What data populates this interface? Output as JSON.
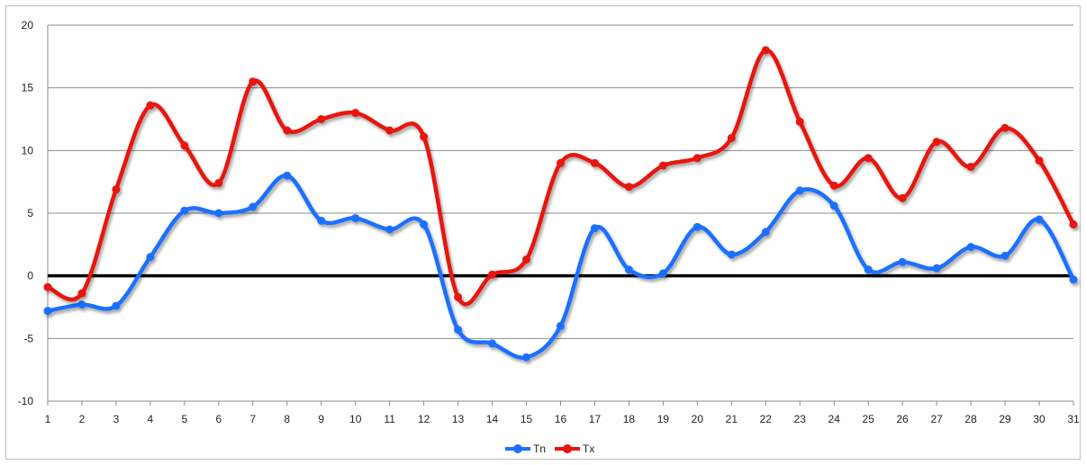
{
  "chart_data": {
    "type": "line",
    "title": "",
    "xlabel": "",
    "ylabel": "",
    "categories": [
      "1",
      "2",
      "3",
      "4",
      "5",
      "6",
      "7",
      "8",
      "9",
      "10",
      "11",
      "12",
      "13",
      "14",
      "15",
      "16",
      "17",
      "18",
      "19",
      "20",
      "21",
      "22",
      "23",
      "24",
      "25",
      "26",
      "27",
      "28",
      "29",
      "30",
      "31"
    ],
    "ylim": [
      -10,
      20
    ],
    "yticks": [
      "-10",
      "-5",
      "0",
      "5",
      "10",
      "15",
      "20"
    ],
    "grid": "horizontal",
    "zero_line": true,
    "smooth": true,
    "legend_position": "bottom",
    "series": [
      {
        "name": "Tn",
        "color": "#1f6fff",
        "values": [
          -2.8,
          -2.3,
          -2.4,
          1.5,
          5.2,
          5.0,
          5.5,
          8.0,
          4.4,
          4.6,
          3.7,
          4.1,
          -4.3,
          -5.4,
          -6.5,
          -4.0,
          3.8,
          0.5,
          0.2,
          3.9,
          1.7,
          3.5,
          6.8,
          5.6,
          0.5,
          1.1,
          0.6,
          2.3,
          1.6,
          4.5,
          -0.3
        ]
      },
      {
        "name": "Tx",
        "color": "#e8120c",
        "values": [
          -0.9,
          -1.4,
          6.9,
          13.6,
          10.4,
          7.4,
          15.5,
          11.6,
          12.5,
          13.0,
          11.6,
          11.1,
          -1.7,
          0.1,
          1.3,
          9.0,
          9.0,
          7.1,
          8.8,
          9.4,
          11.0,
          18.0,
          12.3,
          7.2,
          9.4,
          6.2,
          10.7,
          8.7,
          11.8,
          9.2,
          4.1
        ]
      }
    ]
  }
}
